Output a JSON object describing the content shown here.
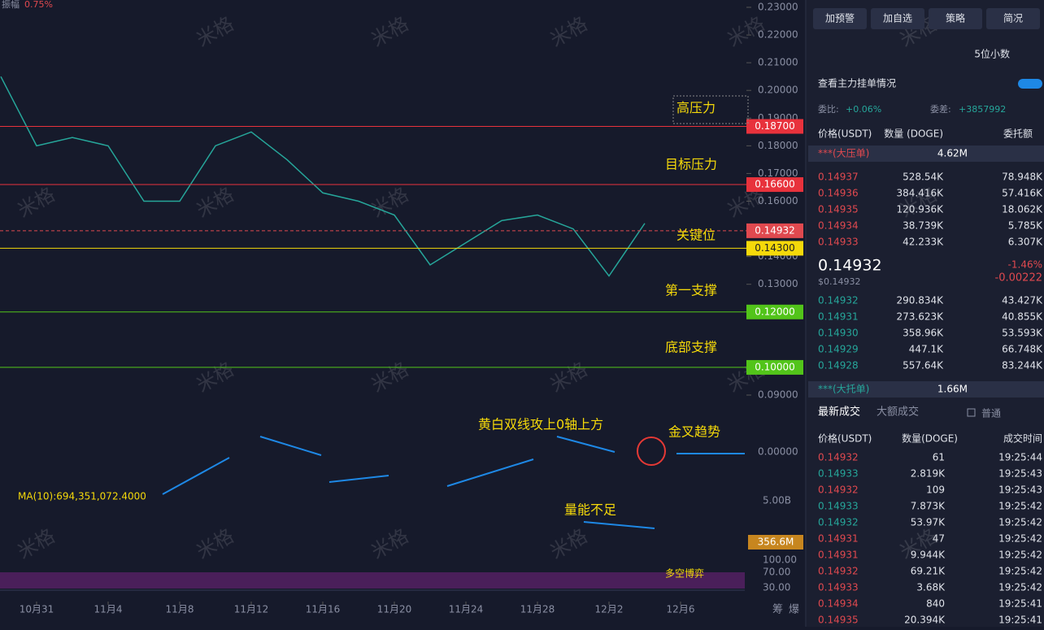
{
  "top_info": {
    "label": "振幅",
    "value": "0.75%"
  },
  "watermark": "米格",
  "chart": {
    "type": "line",
    "ylim": [
      0.09,
      0.23
    ],
    "yticks": [
      {
        "value": 0.23,
        "label": "0.23000"
      },
      {
        "value": 0.22,
        "label": "0.22000"
      },
      {
        "value": 0.21,
        "label": "0.21000"
      },
      {
        "value": 0.2,
        "label": "0.20000"
      },
      {
        "value": 0.19,
        "label": "0.19000"
      },
      {
        "value": 0.18,
        "label": "0.18000"
      },
      {
        "value": 0.17,
        "label": "0.17000"
      },
      {
        "value": 0.16,
        "label": "0.16000"
      },
      {
        "value": 0.14,
        "label": "0.14000"
      },
      {
        "value": 0.13,
        "label": "0.13000"
      },
      {
        "value": 0.09,
        "label": "0.09000"
      }
    ],
    "close": [
      0.205,
      0.18,
      0.183,
      0.18,
      0.16,
      0.16,
      0.18,
      0.185,
      0.175,
      0.163,
      0.16,
      0.155,
      0.137,
      0.145,
      0.153,
      0.155,
      0.15,
      0.133,
      0.152
    ],
    "levels": [
      {
        "value": 0.187,
        "label": "0.18700",
        "color": "#e8323c",
        "note": "高压力"
      },
      {
        "value": 0.166,
        "label": "0.16600",
        "color": "#e8323c",
        "note": "目标压力"
      },
      {
        "value": 0.14932,
        "label": "0.14932",
        "color": "#e0494f",
        "note": "关键位",
        "dashed": true
      },
      {
        "value": 0.143,
        "label": "0.14300",
        "color": "#f5d90a",
        "note": null
      },
      {
        "value": 0.12,
        "label": "0.12000",
        "color": "#52c41a",
        "note": "第一支撑"
      },
      {
        "value": 0.1,
        "label": "0.10000",
        "color": "#52c41a",
        "note": "底部支撑"
      }
    ],
    "xticks": [
      "10月31",
      "11月4",
      "11月8",
      "11月12",
      "11月16",
      "11月20",
      "11月24",
      "11月28",
      "12月2",
      "12月6"
    ],
    "macd_zero": "0.00000",
    "macd_notes": [
      "黄白双线攻上0轴上方",
      "金叉趋势"
    ],
    "ma_label": "MA(10):694,351,072.4000",
    "vol_tick": "5.00B",
    "vol_last": "356.6M",
    "vol_note": "量能不足",
    "rsi_ticks": [
      "100.00",
      "70.00",
      "30.00"
    ],
    "rsi_note": "多空博弈",
    "corner": [
      "筹",
      "爆"
    ]
  },
  "panel": {
    "buttons": [
      "加预警",
      "加自选",
      "策略",
      "简况"
    ],
    "decimals": "5位小数",
    "main_orders": "查看主力挂单情况",
    "ratio_label": "委比:",
    "ratio": "+0.06%",
    "diff_label": "委差:",
    "diff": "+3857992",
    "book_headers": [
      "价格(USDT)",
      "数量 (DOGE)",
      "委托额"
    ],
    "big_ask": {
      "label": "***(大压单)",
      "value": "4.62M"
    },
    "asks": [
      [
        "0.14937",
        "528.54K",
        "78.948K"
      ],
      [
        "0.14936",
        "384.416K",
        "57.416K"
      ],
      [
        "0.14935",
        "120.936K",
        "18.062K"
      ],
      [
        "0.14934",
        "38.739K",
        "5.785K"
      ],
      [
        "0.14933",
        "42.233K",
        "6.307K"
      ]
    ],
    "last": "0.14932",
    "last_usd": "$0.14932",
    "change_pct": "-1.46%",
    "change": "-0.00222",
    "bids": [
      [
        "0.14932",
        "290.834K",
        "43.427K"
      ],
      [
        "0.14931",
        "273.623K",
        "40.855K"
      ],
      [
        "0.14930",
        "358.96K",
        "53.593K"
      ],
      [
        "0.14929",
        "447.1K",
        "66.748K"
      ],
      [
        "0.14928",
        "557.64K",
        "83.244K"
      ]
    ],
    "big_bid": {
      "label": "***(大托单)",
      "value": "1.66M"
    },
    "tabs": [
      "最新成交",
      "大额成交"
    ],
    "normal": "普通",
    "trade_headers": [
      "价格(USDT)",
      "数量(DOGE)",
      "成交时间"
    ],
    "trades": [
      {
        "p": "0.14932",
        "q": "61",
        "t": "19:25:44",
        "side": "sell"
      },
      {
        "p": "0.14933",
        "q": "2.819K",
        "t": "19:25:43",
        "side": "buy"
      },
      {
        "p": "0.14932",
        "q": "109",
        "t": "19:25:43",
        "side": "sell"
      },
      {
        "p": "0.14933",
        "q": "7.873K",
        "t": "19:25:42",
        "side": "buy"
      },
      {
        "p": "0.14932",
        "q": "53.97K",
        "t": "19:25:42",
        "side": "buy"
      },
      {
        "p": "0.14931",
        "q": "47",
        "t": "19:25:42",
        "side": "sell"
      },
      {
        "p": "0.14931",
        "q": "9.944K",
        "t": "19:25:42",
        "side": "sell"
      },
      {
        "p": "0.14932",
        "q": "69.21K",
        "t": "19:25:42",
        "side": "sell"
      },
      {
        "p": "0.14933",
        "q": "3.68K",
        "t": "19:25:42",
        "side": "sell"
      },
      {
        "p": "0.14934",
        "q": "840",
        "t": "19:25:41",
        "side": "sell"
      },
      {
        "p": "0.14935",
        "q": "20.394K",
        "t": "19:25:41",
        "side": "sell"
      }
    ]
  }
}
